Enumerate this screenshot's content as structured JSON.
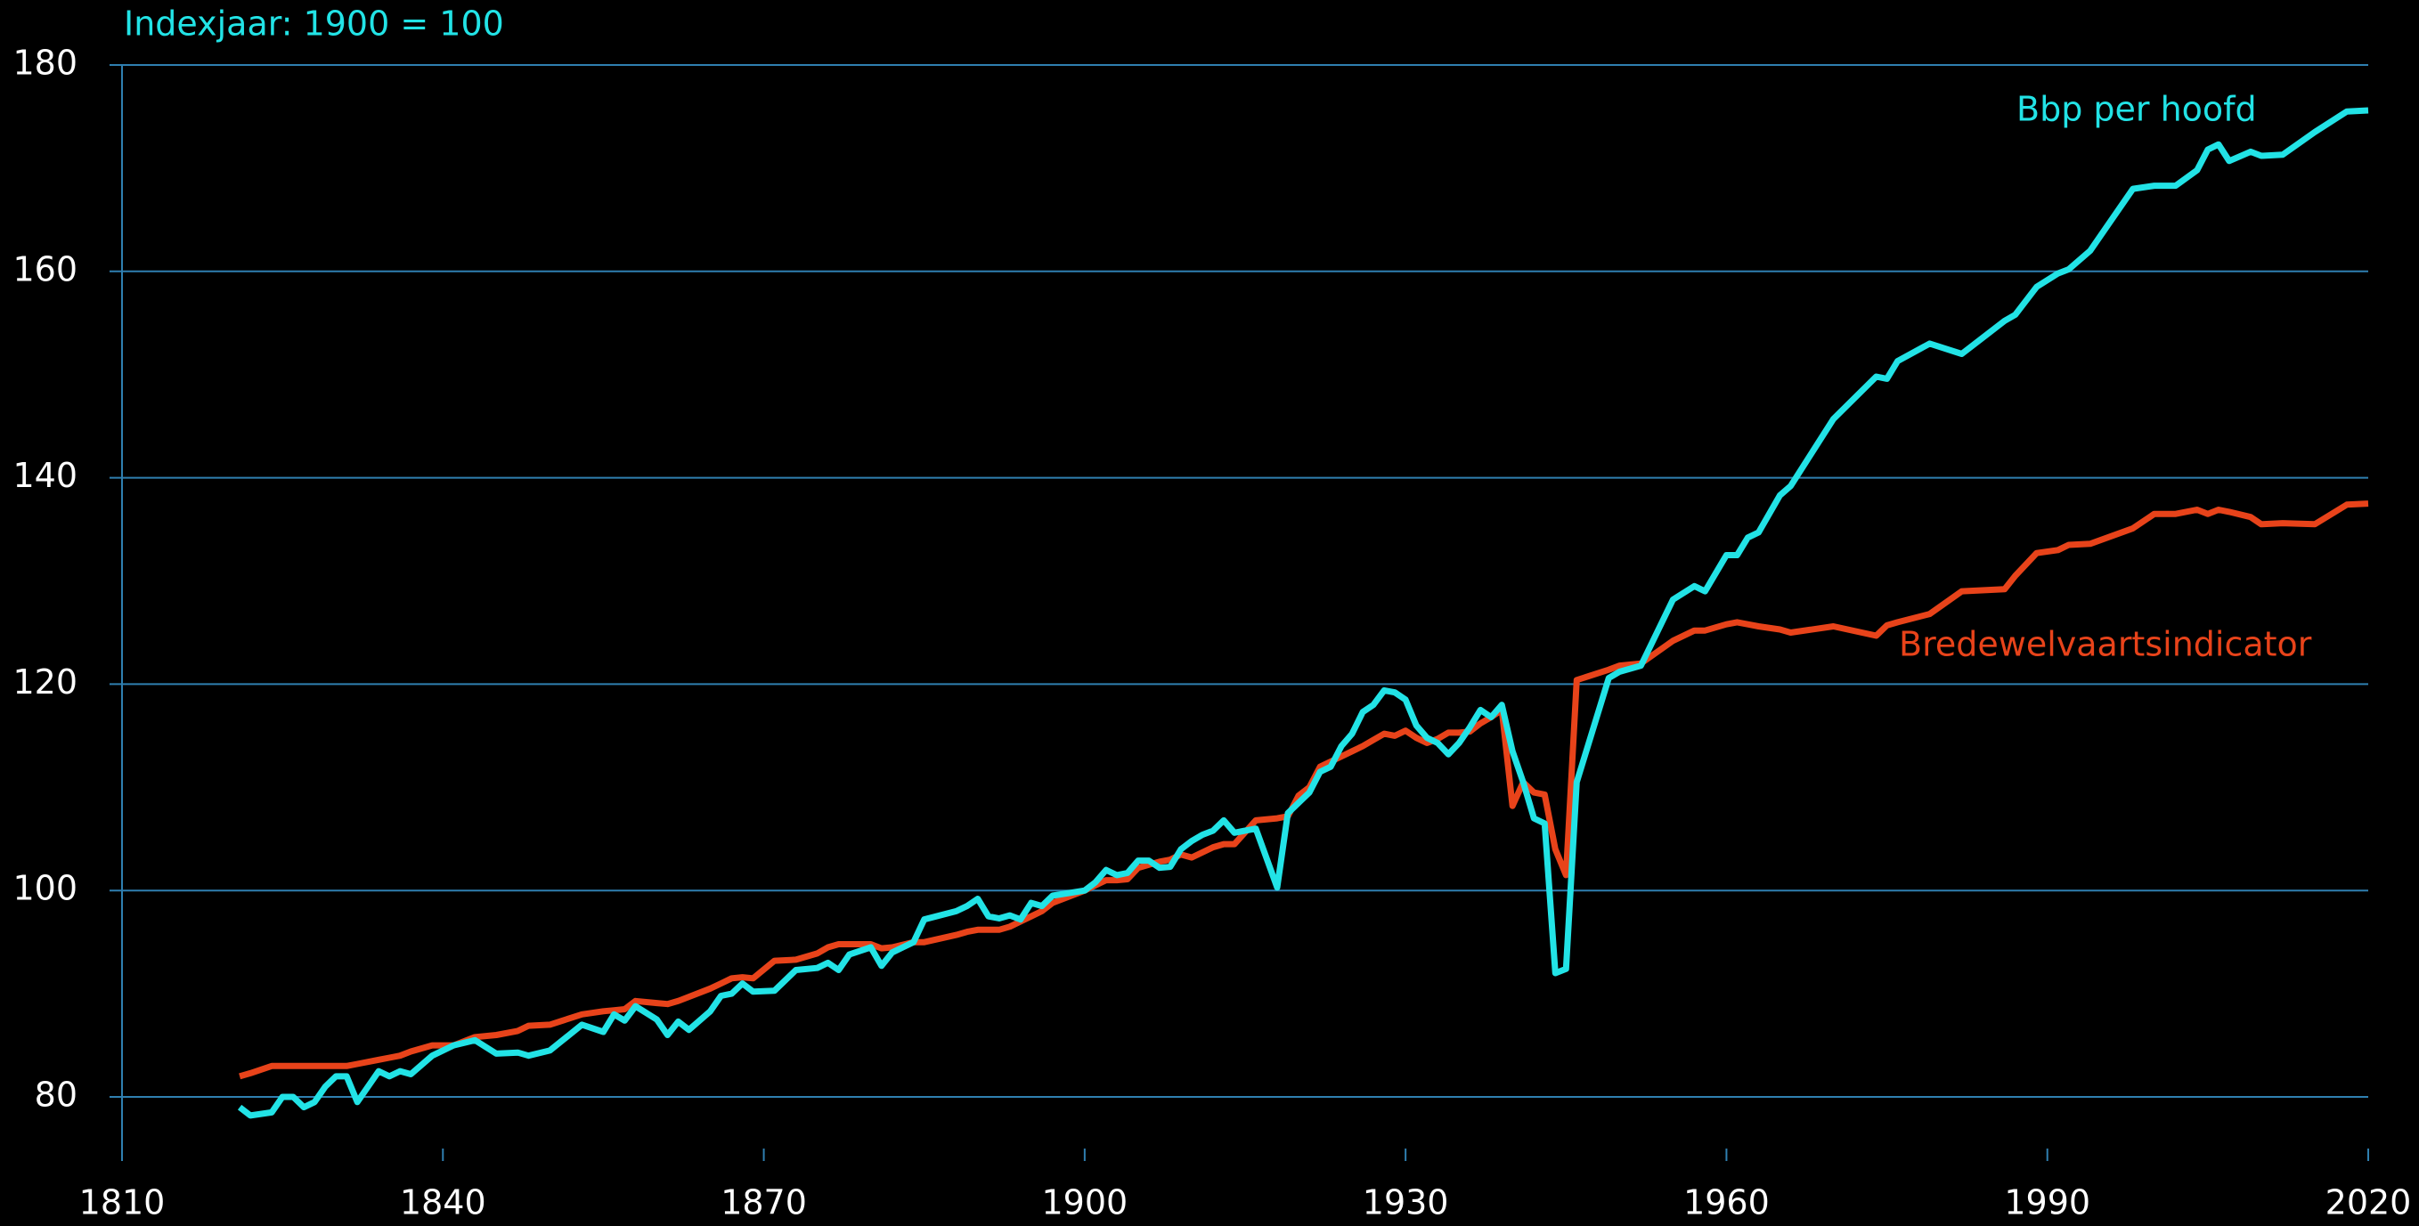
{
  "chart_data": {
    "type": "line",
    "subtitle": "Indexjaar: 1900 = 100",
    "x": [
      1821,
      1822,
      1824,
      1825,
      1826,
      1827,
      1828,
      1829,
      1830,
      1831,
      1832,
      1834,
      1835,
      1836,
      1837,
      1839,
      1841,
      1843,
      1845,
      1847,
      1848,
      1850,
      1853,
      1855,
      1856,
      1857,
      1858,
      1860,
      1861,
      1862,
      1863,
      1865,
      1866,
      1867,
      1868,
      1869,
      1871,
      1873,
      1875,
      1876,
      1877,
      1878,
      1880,
      1881,
      1882,
      1884,
      1885,
      1888,
      1889,
      1890,
      1891,
      1892,
      1893,
      1894,
      1895,
      1896,
      1897,
      1900,
      1901,
      1902,
      1903,
      1904,
      1905,
      1906,
      1907,
      1908,
      1909,
      1910,
      1911,
      1912,
      1913,
      1914,
      1916,
      1918,
      1919,
      1920,
      1921,
      1922,
      1923,
      1924,
      1925,
      1926,
      1927,
      1928,
      1929,
      1930,
      1931,
      1932,
      1933,
      1934,
      1935,
      1936,
      1937,
      1938,
      1939,
      1940,
      1941,
      1942,
      1943,
      1944,
      1945,
      1946,
      1949,
      1950,
      1952,
      1955,
      1957,
      1958,
      1960,
      1961,
      1962,
      1963,
      1965,
      1966,
      1970,
      1974,
      1975,
      1976,
      1979,
      1982,
      1986,
      1987,
      1989,
      1991,
      1992,
      1994,
      1998,
      2000,
      2002,
      2004,
      2005,
      2006,
      2007,
      2009,
      2010,
      2012,
      2015,
      2018,
      2020
    ],
    "series": [
      {
        "name": "Bbp per hoofd",
        "color": "#22e3e6",
        "values": [
          79,
          78.2,
          78.5,
          80,
          80,
          79,
          79.5,
          81,
          82,
          82,
          79.5,
          82.5,
          82,
          82.5,
          82.2,
          84,
          85,
          85.5,
          84.2,
          84.3,
          84,
          84.5,
          87,
          86.3,
          88,
          87.4,
          88.8,
          87.5,
          86,
          87.3,
          86.5,
          88.3,
          89.8,
          90,
          91,
          90.2,
          90.3,
          92.3,
          92.5,
          93,
          92.3,
          93.8,
          94.5,
          92.7,
          94,
          95,
          97.2,
          98,
          98.5,
          99.2,
          97.5,
          97.3,
          97.6,
          97.2,
          98.8,
          98.5,
          99.5,
          100,
          100.8,
          102,
          101.5,
          101.7,
          102.9,
          102.9,
          102.2,
          102.3,
          104,
          104.8,
          105.4,
          105.8,
          106.8,
          105.6,
          106,
          100.3,
          107.5,
          108.5,
          109.5,
          111.5,
          112,
          114,
          115.2,
          117.3,
          118,
          119.4,
          119.2,
          118.5,
          116,
          114.8,
          114.3,
          113.2,
          114.3,
          115.8,
          117.5,
          116.8,
          118,
          113.5,
          110.5,
          107,
          106.5,
          92,
          92.4,
          110.5,
          120.6,
          121.2,
          121.8,
          128.2,
          129.5,
          129,
          132.5,
          132.5,
          134.2,
          134.7,
          138.3,
          139.2,
          145.7,
          149.8,
          149.6,
          151.3,
          153,
          152,
          155.2,
          155.8,
          158.5,
          159.8,
          160.2,
          162,
          168,
          168.3,
          168.3,
          169.8,
          171.8,
          172.3,
          170.7,
          171.6,
          171.2,
          171.3,
          173.5,
          175.5,
          175.6
        ]
      },
      {
        "name": "Bredewelvaartsindicator",
        "color": "#e8431a",
        "values": [
          82,
          82.3,
          83,
          83,
          83,
          83,
          83,
          83,
          83,
          83,
          83.2,
          83.6,
          83.8,
          84,
          84.4,
          85,
          85,
          85.8,
          86,
          86.4,
          86.9,
          87,
          88,
          88.3,
          88.4,
          88.5,
          89.3,
          89.1,
          89,
          89.3,
          89.7,
          90.5,
          91,
          91.5,
          91.6,
          91.5,
          93.2,
          93.3,
          93.9,
          94.5,
          94.8,
          94.8,
          94.8,
          94.4,
          94.5,
          95,
          95,
          95.7,
          96,
          96.2,
          96.2,
          96.2,
          96.5,
          97,
          97.5,
          98,
          98.8,
          100,
          100.5,
          101,
          101,
          101.1,
          102.2,
          102.5,
          102.8,
          103,
          103.5,
          103.2,
          103.7,
          104.2,
          104.5,
          104.5,
          106.8,
          107,
          107.2,
          109.2,
          110,
          112,
          112.5,
          113,
          113.5,
          114,
          114.6,
          115.2,
          115,
          115.5,
          114.8,
          114.3,
          114.7,
          115.3,
          115.3,
          115.4,
          116.2,
          116.8,
          117.5,
          108.2,
          110.5,
          109.5,
          109.3,
          104,
          101.5,
          120.4,
          121.4,
          121.8,
          122,
          124.2,
          125.2,
          125.2,
          125.8,
          126,
          125.8,
          125.6,
          125.3,
          125,
          125.6,
          124.7,
          125.7,
          126,
          126.8,
          129,
          129.2,
          130.5,
          132.7,
          133,
          133.5,
          133.6,
          135.1,
          136.5,
          136.5,
          136.9,
          136.5,
          136.9,
          136.7,
          136.2,
          135.5,
          135.6,
          135.5,
          137.4,
          137.5
        ]
      }
    ],
    "xlim": [
      1810,
      2020
    ],
    "xticks": [
      1810,
      1840,
      1870,
      1900,
      1930,
      1960,
      1990,
      2020
    ],
    "ylim": [
      75,
      180
    ],
    "yticks": [
      80,
      100,
      120,
      140,
      160,
      180
    ],
    "grid": true
  }
}
